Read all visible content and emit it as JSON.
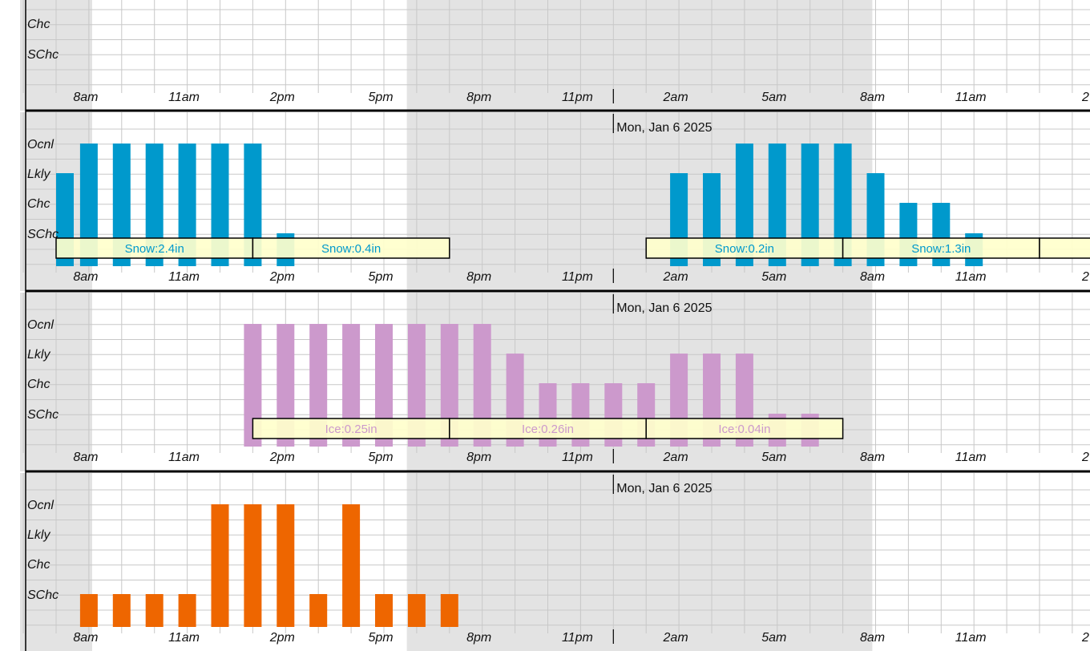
{
  "colors": {
    "night_shade": "#e3e3e3",
    "grid": "#c8c8c8",
    "snow": "#0099cc",
    "ice": "#cc99cc",
    "thunder": "#ee6600",
    "accum_box": "#ffffcc",
    "divider": "#000000"
  },
  "level_labels": [
    "Ocnl",
    "Lkly",
    "Chc",
    "SChc"
  ],
  "time_labels": [
    "8am",
    "11am",
    "2pm",
    "5pm",
    "8pm",
    "11pm",
    "2am",
    "5am",
    "8am",
    "11am",
    "2"
  ],
  "date_label": "Mon, Jan 6 2025",
  "chart_data": [
    {
      "type": "bar",
      "title": "",
      "categories": [
        "8am",
        "11am",
        "2pm",
        "5pm",
        "8pm",
        "11pm",
        "2am",
        "5am",
        "8am",
        "11am"
      ],
      "partial_levels": [
        "Chc",
        "SChc"
      ],
      "series": [],
      "accumulations": []
    },
    {
      "type": "bar",
      "title": "",
      "levels": [
        "SChc",
        "Chc",
        "Lkly",
        "Ocnl"
      ],
      "hours": [
        "7am",
        "8am",
        "9am",
        "10am",
        "11am",
        "12pm",
        "1pm",
        "2pm",
        "3pm",
        "4pm",
        "5pm",
        "6pm",
        "7pm",
        "8pm",
        "9pm",
        "10pm",
        "11pm",
        "12am",
        "1am",
        "2am",
        "3am",
        "4am",
        "5am",
        "6am",
        "7am",
        "8am",
        "9am",
        "10am",
        "11am",
        "12pm",
        "1pm"
      ],
      "series": [
        {
          "values": [
            3,
            4,
            4,
            4,
            4,
            4,
            4,
            1,
            0,
            0,
            0,
            0,
            0,
            0,
            0,
            0,
            0,
            0,
            0,
            3,
            3,
            4,
            4,
            4,
            4,
            3,
            2,
            2,
            1,
            0,
            0
          ]
        }
      ],
      "accumulations": [
        {
          "label": "Snow:2.4in",
          "from": "7am",
          "to": "1pm"
        },
        {
          "label": "Snow:0.4in",
          "from": "1pm",
          "to": "7pm"
        },
        {
          "label": "Snow:0.2in",
          "from": "1am",
          "to": "7am"
        },
        {
          "label": "Snow:1.3in",
          "from": "7am",
          "to": "1pm"
        },
        {
          "label": "",
          "from": "1pm",
          "to": "7pm"
        }
      ]
    },
    {
      "type": "bar",
      "title": "",
      "levels": [
        "SChc",
        "Chc",
        "Lkly",
        "Ocnl"
      ],
      "hours": [
        "7am",
        "8am",
        "9am",
        "10am",
        "11am",
        "12pm",
        "1pm",
        "2pm",
        "3pm",
        "4pm",
        "5pm",
        "6pm",
        "7pm",
        "8pm",
        "9pm",
        "10pm",
        "11pm",
        "12am",
        "1am",
        "2am",
        "3am",
        "4am",
        "5am",
        "6am",
        "7am",
        "8am",
        "9am",
        "10am",
        "11am",
        "12pm",
        "1pm"
      ],
      "series": [
        {
          "values": [
            0,
            0,
            0,
            0,
            0,
            0,
            4,
            4,
            4,
            4,
            4,
            4,
            4,
            4,
            3,
            2,
            2,
            2,
            2,
            3,
            3,
            3,
            1,
            1,
            0,
            0,
            0,
            0,
            0,
            0,
            0
          ]
        }
      ],
      "accumulations": [
        {
          "label": "Ice:0.25in",
          "from": "1pm",
          "to": "7pm"
        },
        {
          "label": "Ice:0.26in",
          "from": "7pm",
          "to": "1am"
        },
        {
          "label": "Ice:0.04in",
          "from": "1am",
          "to": "7am"
        }
      ]
    },
    {
      "type": "bar",
      "title": "",
      "levels": [
        "SChc",
        "Chc",
        "Lkly",
        "Ocnl"
      ],
      "hours": [
        "7am",
        "8am",
        "9am",
        "10am",
        "11am",
        "12pm",
        "1pm",
        "2pm",
        "3pm",
        "4pm",
        "5pm",
        "6pm",
        "7pm",
        "8pm",
        "9pm",
        "10pm",
        "11pm",
        "12am",
        "1am",
        "2am",
        "3am",
        "4am",
        "5am",
        "6am",
        "7am",
        "8am",
        "9am",
        "10am",
        "11am",
        "12pm",
        "1pm"
      ],
      "series": [
        {
          "values": [
            0,
            1,
            1,
            1,
            1,
            4,
            4,
            4,
            1,
            4,
            1,
            1,
            1,
            0,
            0,
            0,
            0,
            0,
            0,
            0,
            0,
            0,
            0,
            0,
            0,
            0,
            0,
            0,
            0,
            0,
            0
          ]
        }
      ],
      "accumulations": []
    }
  ]
}
